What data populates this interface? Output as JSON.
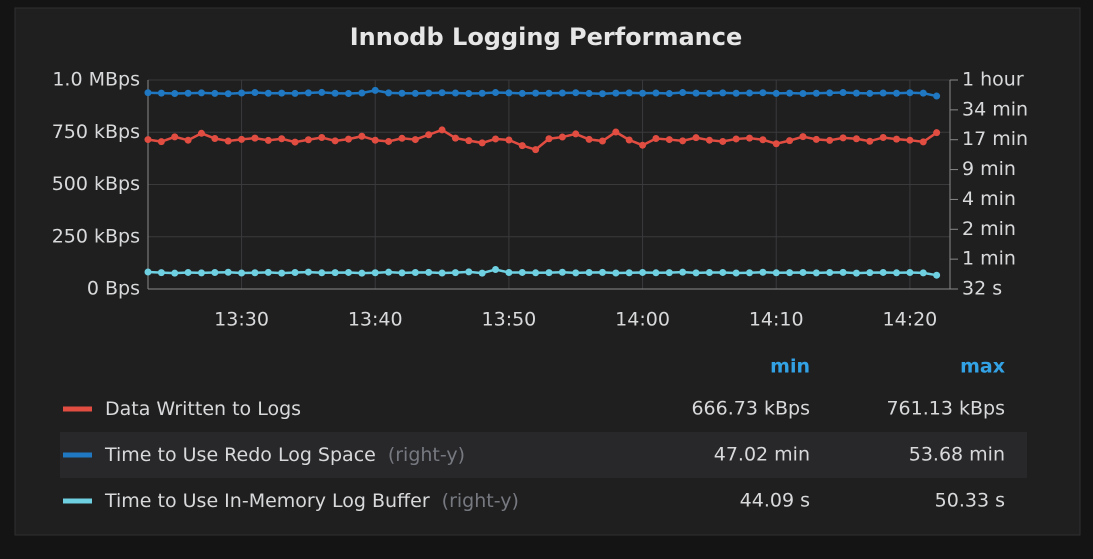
{
  "chart_data": {
    "type": "scatter-line",
    "title": "Innodb Logging Performance",
    "xlim": [
      "13:23",
      "14:23"
    ],
    "xticks": [
      "13:30",
      "13:40",
      "13:50",
      "14:00",
      "14:10",
      "14:20"
    ],
    "ylim": [
      0,
      1000000
    ],
    "yticks": [
      {
        "value": 0,
        "label": "0 Bps"
      },
      {
        "value": 250000,
        "label": "250 kBps"
      },
      {
        "value": 500000,
        "label": "500 kBps"
      },
      {
        "value": 750000,
        "label": "750 kBps"
      },
      {
        "value": 1000000,
        "label": "1.0 MBps"
      }
    ],
    "y2lim": [
      32,
      4096
    ],
    "y2log": true,
    "y2ticks": [
      {
        "value": 32,
        "label": "32 s"
      },
      {
        "value": 64,
        "label": "1 min"
      },
      {
        "value": 128,
        "label": "2 min"
      },
      {
        "value": 256,
        "label": "4 min"
      },
      {
        "value": 512,
        "label": "9 min"
      },
      {
        "value": 1024,
        "label": "17 min"
      },
      {
        "value": 2048,
        "label": "34 min"
      },
      {
        "value": 4096,
        "label": "1 hour"
      }
    ],
    "grid": true,
    "legend_columns": [
      "min",
      "max"
    ],
    "right_axis_note": "(right-y)",
    "x": [
      "13:23",
      "13:24",
      "13:25",
      "13:26",
      "13:27",
      "13:28",
      "13:29",
      "13:30",
      "13:31",
      "13:32",
      "13:33",
      "13:34",
      "13:35",
      "13:36",
      "13:37",
      "13:38",
      "13:39",
      "13:40",
      "13:41",
      "13:42",
      "13:43",
      "13:44",
      "13:45",
      "13:46",
      "13:47",
      "13:48",
      "13:49",
      "13:50",
      "13:51",
      "13:52",
      "13:53",
      "13:54",
      "13:55",
      "13:56",
      "13:57",
      "13:58",
      "13:59",
      "14:00",
      "14:01",
      "14:02",
      "14:03",
      "14:04",
      "14:05",
      "14:06",
      "14:07",
      "14:08",
      "14:09",
      "14:10",
      "14:11",
      "14:12",
      "14:13",
      "14:14",
      "14:15",
      "14:16",
      "14:17",
      "14:18",
      "14:19",
      "14:20",
      "14:21",
      "14:22"
    ],
    "series": [
      {
        "name": "Data Written to Logs",
        "color": "#e24d42",
        "legend_values": [
          "666.73 kBps",
          "761.13 kBps"
        ],
        "values": [
          715000,
          705000,
          728000,
          712000,
          745000,
          720000,
          708000,
          716000,
          722000,
          711000,
          719000,
          703000,
          714000,
          725000,
          709000,
          717000,
          731000,
          712000,
          706000,
          721000,
          715000,
          738000,
          761130,
          722000,
          710000,
          699000,
          718000,
          713000,
          686000,
          666730,
          719000,
          727000,
          742000,
          716000,
          708000,
          751000,
          713000,
          688000,
          720000,
          715000,
          709000,
          724000,
          712000,
          706000,
          718000,
          722000,
          714000,
          695000,
          710000,
          729000,
          716000,
          711000,
          723000,
          719000,
          707000,
          725000,
          717000,
          712000,
          704000,
          748000
        ]
      },
      {
        "name": "Time to Use Redo Log Space",
        "color": "#1f78c1",
        "axis": "y2",
        "legend_values": [
          "47.02 min",
          "53.68 min"
        ],
        "values": [
          3050,
          3020,
          2990,
          3010,
          3040,
          3000,
          2980,
          3030,
          3060,
          3010,
          3020,
          3000,
          3040,
          3070,
          3010,
          2990,
          3030,
          3220.8,
          3040,
          3010,
          3000,
          3020,
          3050,
          3030,
          2990,
          3010,
          3060,
          3040,
          3000,
          3020,
          3010,
          3030,
          3050,
          3000,
          2980,
          3020,
          3040,
          3010,
          3030,
          2990,
          3060,
          3020,
          3000,
          3040,
          3010,
          3030,
          3050,
          3000,
          3020,
          2990,
          3010,
          3040,
          3060,
          3020,
          3000,
          3030,
          3010,
          3050,
          3020,
          2821.2
        ]
      },
      {
        "name": "Time to Use In-Memory Log Buffer",
        "color": "#6ed0e0",
        "axis": "y2",
        "legend_values": [
          "44.09 s",
          "50.33 s"
        ],
        "values": [
          47.5,
          46.8,
          46.2,
          47.0,
          46.5,
          46.9,
          47.2,
          46.4,
          46.7,
          47.1,
          46.3,
          46.9,
          47.4,
          46.6,
          46.8,
          47.0,
          46.2,
          46.7,
          47.3,
          46.5,
          46.9,
          47.1,
          46.4,
          46.8,
          47.6,
          46.3,
          50.33,
          46.9,
          47.0,
          46.6,
          46.8,
          47.2,
          46.5,
          46.9,
          47.1,
          46.4,
          46.7,
          47.0,
          46.6,
          46.8,
          47.3,
          46.5,
          46.9,
          47.0,
          46.4,
          46.7,
          47.2,
          46.6,
          46.8,
          47.0,
          46.5,
          46.9,
          47.1,
          46.3,
          46.8,
          47.0,
          46.6,
          46.9,
          46.5,
          44.09
        ]
      }
    ]
  }
}
